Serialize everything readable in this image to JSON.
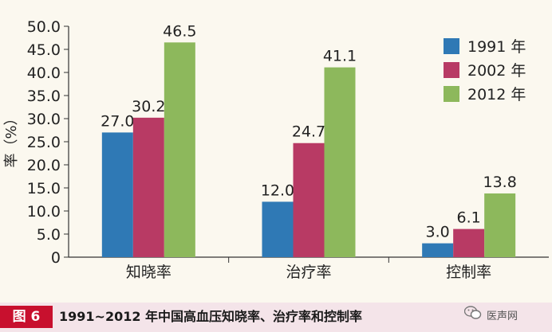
{
  "chart_data": {
    "type": "bar",
    "categories": [
      "知晓率",
      "治疗率",
      "控制率"
    ],
    "series": [
      {
        "name": "1991 年",
        "values": [
          27.0,
          12.0,
          3.0
        ],
        "color": "#2f79b5"
      },
      {
        "name": "2002 年",
        "values": [
          30.2,
          24.7,
          6.1
        ],
        "color": "#b83a64"
      },
      {
        "name": "2012 年",
        "values": [
          46.5,
          41.1,
          13.8
        ],
        "color": "#8db85c"
      }
    ],
    "data_labels": [
      [
        "27.0",
        "12.0",
        "3.0"
      ],
      [
        "30.2",
        "24.7",
        "6.1"
      ],
      [
        "46.5",
        "41.1",
        "13.8"
      ]
    ],
    "yticks": [
      "0",
      "5.0",
      "10.0",
      "15.0",
      "20.0",
      "25.0",
      "30.0",
      "35.0",
      "40.0",
      "45.0",
      "50.0"
    ],
    "ylabel": "率（%）",
    "xlabel": "",
    "ylim": [
      0,
      50
    ],
    "legend_position": "top-right",
    "grid": false
  },
  "caption": {
    "figure_label": "图 6",
    "title": "1991~2012 年中国高血压知晓率、治疗率和控制率"
  },
  "watermark": {
    "text": "医声网",
    "icon": "wechat-icon"
  }
}
